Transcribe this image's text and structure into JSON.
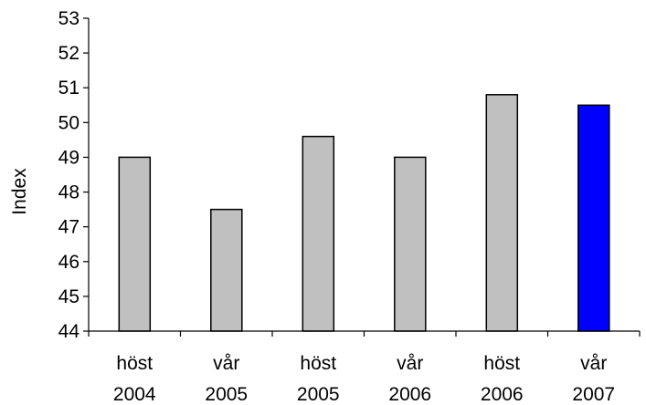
{
  "chart_data": {
    "type": "bar",
    "categories": [
      [
        "höst",
        "2004"
      ],
      [
        "vår",
        "2005"
      ],
      [
        "höst",
        "2005"
      ],
      [
        "vår",
        "2006"
      ],
      [
        "höst",
        "2006"
      ],
      [
        "vår",
        "2007"
      ]
    ],
    "values": [
      49.0,
      47.5,
      49.6,
      49.0,
      50.8,
      50.5
    ],
    "bar_colors": [
      "#c0c0c0",
      "#c0c0c0",
      "#c0c0c0",
      "#c0c0c0",
      "#c0c0c0",
      "#0000ff"
    ],
    "ylabel": "Index",
    "ylim": [
      44,
      53
    ],
    "yticks": [
      44,
      45,
      46,
      47,
      48,
      49,
      50,
      51,
      52,
      53
    ],
    "grid": false,
    "legend": "none"
  }
}
